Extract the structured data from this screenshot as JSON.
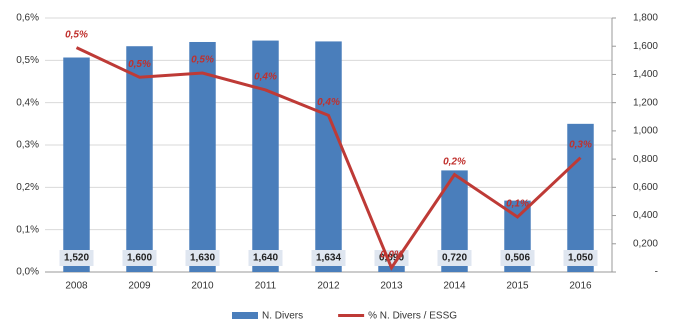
{
  "chart_data": {
    "type": "combo",
    "categories": [
      "2008",
      "2009",
      "2010",
      "2011",
      "2012",
      "2013",
      "2014",
      "2015",
      "2016"
    ],
    "ylim": [
      0,
      0.6
    ],
    "yticks": [
      {
        "value": 0,
        "label": "0,0%"
      },
      {
        "value": 0.1,
        "label": "0,1%"
      },
      {
        "value": 0.2,
        "label": "0,2%"
      },
      {
        "value": 0.3,
        "label": "0,3%"
      },
      {
        "value": 0.4,
        "label": "0,4%"
      },
      {
        "value": 0.5,
        "label": "0,5%"
      },
      {
        "value": 0.6,
        "label": "0,6%"
      }
    ],
    "y2lim": [
      0,
      1.8
    ],
    "y2ticks": [
      {
        "value": 0,
        "label": "-"
      },
      {
        "value": 0.2,
        "label": "0,200"
      },
      {
        "value": 0.4,
        "label": "0,400"
      },
      {
        "value": 0.6,
        "label": "0,600"
      },
      {
        "value": 0.8,
        "label": "0,800"
      },
      {
        "value": 1.0,
        "label": "1,000"
      },
      {
        "value": 1.2,
        "label": "1,200"
      },
      {
        "value": 1.4,
        "label": "1,400"
      },
      {
        "value": 1.6,
        "label": "1,600"
      },
      {
        "value": 1.8,
        "label": "1,800"
      }
    ],
    "grid": true,
    "legend": "bottom",
    "series": [
      {
        "name": "N. Divers",
        "type": "bar",
        "axis": "y2",
        "color": "#4a7ebb",
        "values": [
          1.52,
          1.6,
          1.63,
          1.64,
          1.634,
          0.09,
          0.72,
          0.506,
          1.05
        ],
        "value_labels": [
          "1,520",
          "1,600",
          "1,630",
          "1,640",
          "1,634",
          "0,090",
          "0,720",
          "0,506",
          "1,050"
        ]
      },
      {
        "name": "% N. Divers / ESSG",
        "type": "line",
        "axis": "y",
        "color": "#be3a36",
        "values": [
          0.53,
          0.46,
          0.47,
          0.43,
          0.37,
          0.01,
          0.23,
          0.13,
          0.27
        ],
        "value_labels": [
          "0,5%",
          "0,5%",
          "0,5%",
          "0,4%",
          "0,4%",
          "0,0%",
          "0,2%",
          "0,1%",
          "0,3%"
        ]
      }
    ]
  }
}
